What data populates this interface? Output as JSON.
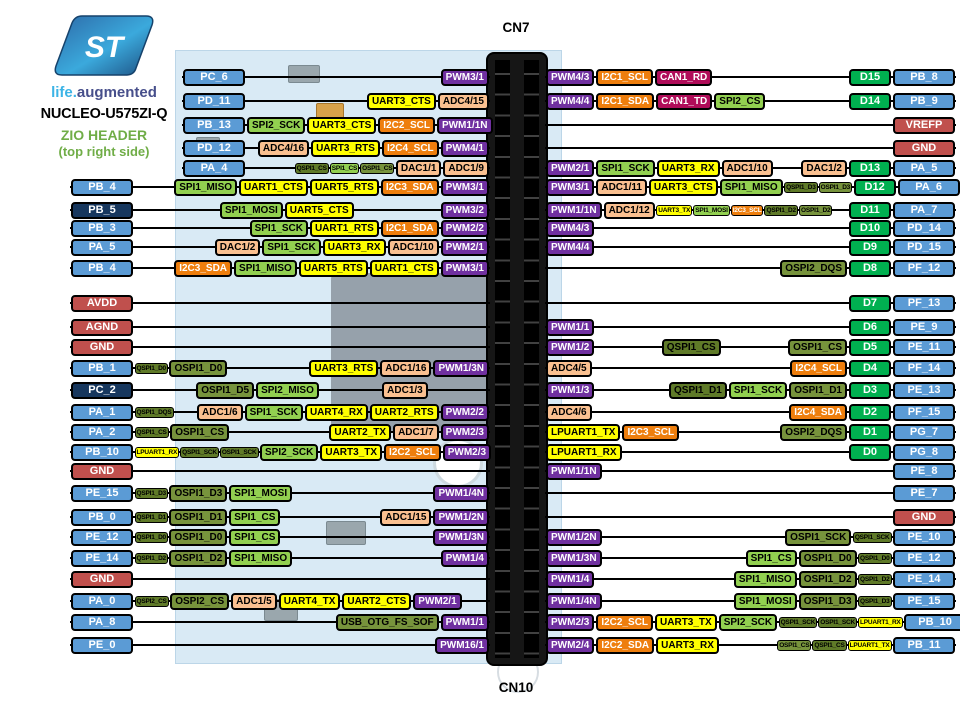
{
  "brand": {
    "logo_text": "ST",
    "tagline_life": "life.",
    "tagline_aug": "augmented",
    "board": "NUCLEO-U575ZI-Q",
    "header": "ZIO HEADER",
    "side": "(top right side)"
  },
  "labels": {
    "top": "CN7",
    "bottom": "CN10"
  },
  "palette": {
    "pin": {
      "bg": "#5B9BD5",
      "fg": "#FFFFFF"
    },
    "pinDark": {
      "bg": "#17375E",
      "fg": "#FFFFFF"
    },
    "power": {
      "bg": "#C0504D",
      "fg": "#FFFFFF"
    },
    "d": {
      "bg": "#00B050",
      "fg": "#FFFFFF"
    },
    "pwm": {
      "bg": "#7030A0",
      "fg": "#FFFFFF"
    },
    "i2c": {
      "bg": "#EE7E0D",
      "fg": "#FFFFFF"
    },
    "can": {
      "bg": "#B00C59",
      "fg": "#FFFFFF"
    },
    "adc": {
      "bg": "#FAC090",
      "fg": "#000000"
    },
    "uart": {
      "bg": "#FFFF00",
      "fg": "#000000"
    },
    "spi": {
      "bg": "#92D050",
      "fg": "#000000"
    },
    "ospi": {
      "bg": "#77933C",
      "fg": "#000000"
    },
    "qspi": {
      "bg": "#5F7A28",
      "fg": "#000000"
    },
    "usb": {
      "bg": "#77933C",
      "fg": "#000000"
    }
  },
  "left_rows": [
    {
      "pin": "PC_6",
      "pt": "pin",
      "items": [
        {
          "g": 1
        },
        {
          "l": "PWM3/1",
          "t": "pwm"
        }
      ]
    },
    {
      "pin": "PD_11",
      "pt": "pin",
      "items": [
        {
          "g": 1
        },
        {
          "l": "UART3_CTS",
          "t": "uart"
        },
        {
          "l": "ADC4/15",
          "t": "adc"
        }
      ]
    },
    {
      "pin": "PB_13",
      "pt": "pin",
      "items": [
        {
          "g": 1
        },
        {
          "l": "SPI2_SCK",
          "t": "spi"
        },
        {
          "l": "UART3_CTS",
          "t": "uart"
        },
        {
          "l": "I2C2_SCL",
          "t": "i2c"
        },
        {
          "l": "PWM1/1N",
          "t": "pwm"
        }
      ]
    },
    {
      "pin": "PD_12",
      "pt": "pin",
      "items": [
        {
          "g": 1
        },
        {
          "l": "ADC4/16",
          "t": "adc"
        },
        {
          "l": "UART3_RTS",
          "t": "uart"
        },
        {
          "l": "I2C4_SCL",
          "t": "i2c"
        },
        {
          "l": "PWM4/1",
          "t": "pwm"
        }
      ]
    },
    {
      "pin": "PA_4",
      "pt": "pin",
      "items": [
        {
          "g": 1
        },
        {
          "l": "QSPI1_CS",
          "t": "qspi",
          "s": 1
        },
        {
          "l": "SPI1_CS",
          "t": "spi",
          "s": 1
        },
        {
          "l": "OSPI1_CS",
          "t": "ospi",
          "s": 1
        },
        {
          "l": "DAC1/1",
          "t": "adc"
        },
        {
          "l": "ADC1/9",
          "t": "adc"
        }
      ]
    },
    {
      "pin": "PB_4",
      "pt": "pin",
      "items": [
        {
          "g": 1
        },
        {
          "l": "SPI1_MISO",
          "t": "spi"
        },
        {
          "l": "UART1_CTS",
          "t": "uart"
        },
        {
          "l": "UART5_RTS",
          "t": "uart"
        },
        {
          "l": "I2C3_SDA",
          "t": "i2c"
        },
        {
          "l": "PWM3/1",
          "t": "pwm"
        }
      ]
    },
    {
      "pin": "PB_5",
      "pt": "pinDark",
      "items": [
        {
          "g": 1
        },
        {
          "l": "SPI1_MOSI",
          "t": "spi"
        },
        {
          "l": "UART5_CTS",
          "t": "uart"
        },
        {
          "g": 1
        },
        {
          "l": "PWM3/2",
          "t": "pwm"
        }
      ]
    },
    {
      "pin": "PB_3",
      "pt": "pin",
      "items": [
        {
          "g": 1
        },
        {
          "l": "SPI1_SCK",
          "t": "spi"
        },
        {
          "l": "UART1_RTS",
          "t": "uart"
        },
        {
          "l": "I2C1_SDA",
          "t": "i2c"
        },
        {
          "l": "PWM2/2",
          "t": "pwm"
        }
      ]
    },
    {
      "pin": "PA_5",
      "pt": "pin",
      "items": [
        {
          "g": 1
        },
        {
          "l": "DAC1/2",
          "t": "adc"
        },
        {
          "l": "SPI1_SCK",
          "t": "spi"
        },
        {
          "l": "UART3_RX",
          "t": "uart"
        },
        {
          "l": "ADC1/10",
          "t": "adc"
        },
        {
          "l": "PWM2/1",
          "t": "pwm"
        }
      ]
    },
    {
      "pin": "PB_4",
      "pt": "pin",
      "items": [
        {
          "g": 1
        },
        {
          "l": "I2C3_SDA",
          "t": "i2c"
        },
        {
          "l": "SPI1_MISO",
          "t": "spi"
        },
        {
          "l": "UART5_RTS",
          "t": "uart"
        },
        {
          "l": "UART1_CTS",
          "t": "uart"
        },
        {
          "l": "PWM3/1",
          "t": "pwm"
        }
      ]
    },
    {
      "pin": "AVDD",
      "pt": "power",
      "items": [
        {
          "g": 1
        }
      ]
    },
    {
      "pin": "AGND",
      "pt": "power",
      "items": [
        {
          "g": 1
        }
      ]
    },
    {
      "pin": "GND",
      "pt": "power",
      "items": [
        {
          "g": 1
        }
      ]
    },
    {
      "pin": "PB_1",
      "pt": "pin",
      "items": [
        {
          "l": "QSPI1_D0",
          "t": "qspi",
          "s": 1
        },
        {
          "l": "OSPI1_D0",
          "t": "ospi"
        },
        {
          "g": 1
        },
        {
          "l": "UART3_RTS",
          "t": "uart"
        },
        {
          "l": "ADC1/16",
          "t": "adc"
        },
        {
          "l": "PWM1/3N",
          "t": "pwm"
        }
      ]
    },
    {
      "pin": "PC_2",
      "pt": "pinDark",
      "items": [
        {
          "g": 1
        },
        {
          "l": "OSPI1_D5",
          "t": "ospi"
        },
        {
          "l": "SPI2_MISO",
          "t": "spi"
        },
        {
          "g": 1
        },
        {
          "l": "ADC1/3",
          "t": "adc"
        },
        {
          "g": 1
        }
      ]
    },
    {
      "pin": "PA_1",
      "pt": "pin",
      "items": [
        {
          "l": "QSPI1_DQS",
          "t": "qspi",
          "s": 1
        },
        {
          "g": 1
        },
        {
          "l": "ADC1/6",
          "t": "adc"
        },
        {
          "l": "SPI1_SCK",
          "t": "spi"
        },
        {
          "l": "UART4_RX",
          "t": "uart"
        },
        {
          "l": "UART2_RTS",
          "t": "uart"
        },
        {
          "l": "PWM2/2",
          "t": "pwm"
        }
      ]
    },
    {
      "pin": "PA_2",
      "pt": "pin",
      "items": [
        {
          "l": "QSPI1_CS",
          "t": "qspi",
          "s": 1
        },
        {
          "l": "OSPI1_CS",
          "t": "ospi"
        },
        {
          "g": 1
        },
        {
          "l": "UART2_TX",
          "t": "uart"
        },
        {
          "l": "ADC1/7",
          "t": "adc"
        },
        {
          "l": "PWM2/3",
          "t": "pwm"
        }
      ]
    },
    {
      "pin": "PB_10",
      "pt": "pin",
      "items": [
        {
          "l": "LPUART1_RX",
          "t": "uart",
          "s": 1
        },
        {
          "l": "QSPI1_SCK",
          "t": "qspi",
          "s": 1
        },
        {
          "l": "OSPI1_SCK",
          "t": "qspi",
          "s": 1
        },
        {
          "l": "SPI2_SCK",
          "t": "spi"
        },
        {
          "l": "UART3_TX",
          "t": "uart"
        },
        {
          "l": "I2C2_SCL",
          "t": "i2c"
        },
        {
          "l": "PWM2/3",
          "t": "pwm"
        }
      ]
    },
    {
      "pin": "GND",
      "pt": "power",
      "items": [
        {
          "g": 1
        }
      ]
    },
    {
      "pin": "PE_15",
      "pt": "pin",
      "items": [
        {
          "l": "QSPI1_D3",
          "t": "qspi",
          "s": 1
        },
        {
          "l": "OSPI1_D3",
          "t": "ospi"
        },
        {
          "l": "SPI1_MOSI",
          "t": "spi"
        },
        {
          "g": 1
        },
        {
          "l": "PWM1/4N",
          "t": "pwm"
        }
      ]
    },
    {
      "pin": "PB_0",
      "pt": "pin",
      "items": [
        {
          "l": "QSPI1_D1",
          "t": "qspi",
          "s": 1
        },
        {
          "l": "OSPI1_D1",
          "t": "ospi"
        },
        {
          "l": "SPI1_CS",
          "t": "spi"
        },
        {
          "g": 1
        },
        {
          "l": "ADC1/15",
          "t": "adc"
        },
        {
          "l": "PWM1/2N",
          "t": "pwm"
        }
      ]
    },
    {
      "pin": "PE_12",
      "pt": "pin",
      "items": [
        {
          "l": "QSPI1_D0",
          "t": "qspi",
          "s": 1
        },
        {
          "l": "OSPI1_D0",
          "t": "ospi"
        },
        {
          "l": "SPI1_CS",
          "t": "spi"
        },
        {
          "g": 1
        },
        {
          "l": "PWM1/3N",
          "t": "pwm"
        }
      ]
    },
    {
      "pin": "PE_14",
      "pt": "pin",
      "items": [
        {
          "l": "QSPI1_D2",
          "t": "qspi",
          "s": 1
        },
        {
          "l": "OSPI1_D2",
          "t": "ospi"
        },
        {
          "l": "SPI1_MISO",
          "t": "spi"
        },
        {
          "g": 1
        },
        {
          "l": "PWM1/4",
          "t": "pwm"
        }
      ]
    },
    {
      "pin": "GND",
      "pt": "power",
      "items": [
        {
          "g": 1
        }
      ]
    },
    {
      "pin": "PA_0",
      "pt": "pin",
      "items": [
        {
          "l": "QSPI2_CS",
          "t": "qspi",
          "s": 1
        },
        {
          "l": "OSPI2_CS",
          "t": "ospi"
        },
        {
          "l": "ADC1/5",
          "t": "adc"
        },
        {
          "l": "UART4_TX",
          "t": "uart"
        },
        {
          "l": "UART2_CTS",
          "t": "uart"
        },
        {
          "l": "PWM2/1",
          "t": "pwm"
        }
      ]
    },
    {
      "pin": "PA_8",
      "pt": "pin",
      "items": [
        {
          "g": 1
        },
        {
          "l": "USB_OTG_FS_SOF",
          "t": "usb"
        },
        {
          "l": "PWM1/1",
          "t": "pwm"
        }
      ]
    },
    {
      "pin": "PE_0",
      "pt": "pin",
      "items": [
        {
          "g": 1
        },
        {
          "l": "PWM16/1",
          "t": "pwm"
        }
      ]
    }
  ],
  "right_rows": [
    {
      "items": [
        {
          "l": "PWM4/3",
          "t": "pwm"
        },
        {
          "l": "I2C1_SCL",
          "t": "i2c"
        },
        {
          "l": "CAN1_RD",
          "t": "can"
        },
        {
          "g": 1
        }
      ],
      "d": "D15",
      "pin": "PB_8",
      "pt": "pin"
    },
    {
      "items": [
        {
          "l": "PWM4/4",
          "t": "pwm"
        },
        {
          "l": "I2C1_SDA",
          "t": "i2c"
        },
        {
          "l": "CAN1_TD",
          "t": "can"
        },
        {
          "l": "SPI2_CS",
          "t": "spi"
        },
        {
          "g": 1
        }
      ],
      "d": "D14",
      "pin": "PB_9",
      "pt": "pin"
    },
    {
      "items": [
        {
          "g": 1
        }
      ],
      "pin": "VREFP",
      "pt": "power"
    },
    {
      "items": [
        {
          "g": 1
        }
      ],
      "pin": "GND",
      "pt": "power"
    },
    {
      "items": [
        {
          "l": "PWM2/1",
          "t": "pwm"
        },
        {
          "l": "SPI1_SCK",
          "t": "spi"
        },
        {
          "l": "UART3_RX",
          "t": "uart"
        },
        {
          "l": "ADC1/10",
          "t": "adc"
        },
        {
          "g": 1
        },
        {
          "l": "DAC1/2",
          "t": "adc"
        }
      ],
      "d": "D13",
      "pin": "PA_5",
      "pt": "pin"
    },
    {
      "items": [
        {
          "l": "PWM3/1",
          "t": "pwm"
        },
        {
          "l": "ADC1/11",
          "t": "adc"
        },
        {
          "l": "UART3_CTS",
          "t": "uart"
        },
        {
          "l": "SPI1_MISO",
          "t": "spi"
        },
        {
          "g": 1
        },
        {
          "l": "QSPI1_D3",
          "t": "qspi",
          "s": 1
        },
        {
          "l": "OSPI1_D3",
          "t": "ospi",
          "s": 1
        }
      ],
      "d": "D12",
      "pin": "PA_6",
      "pt": "pin"
    },
    {
      "items": [
        {
          "l": "PWM1/1N",
          "t": "pwm"
        },
        {
          "l": "ADC1/12",
          "t": "adc"
        },
        {
          "l": "UART3_TX",
          "t": "uart",
          "s": 1
        },
        {
          "l": "SPI1_MOSI",
          "t": "spi",
          "s": 1
        },
        {
          "l": "I2C3_SCL",
          "t": "i2c",
          "s": 1
        },
        {
          "l": "QSPI1_D2",
          "t": "qspi",
          "s": 1
        },
        {
          "l": "OSPI1_D2",
          "t": "ospi",
          "s": 1
        },
        {
          "g": 1
        }
      ],
      "d": "D11",
      "pin": "PA_7",
      "pt": "pin"
    },
    {
      "items": [
        {
          "l": "PWM4/3",
          "t": "pwm"
        },
        {
          "g": 1
        }
      ],
      "d": "D10",
      "pin": "PD_14",
      "pt": "pin"
    },
    {
      "items": [
        {
          "l": "PWM4/4",
          "t": "pwm"
        },
        {
          "g": 1
        }
      ],
      "d": "D9",
      "pin": "PD_15",
      "pt": "pin"
    },
    {
      "items": [
        {
          "g": 1
        },
        {
          "l": "OSPI2_DQS",
          "t": "ospi"
        }
      ],
      "d": "D8",
      "pin": "PF_12",
      "pt": "pin"
    },
    {
      "items": [
        {
          "g": 1
        }
      ],
      "d": "D7",
      "pin": "PF_13",
      "pt": "pin"
    },
    {
      "items": [
        {
          "l": "PWM1/1",
          "t": "pwm"
        },
        {
          "g": 1
        }
      ],
      "d": "D6",
      "pin": "PE_9",
      "pt": "pin"
    },
    {
      "items": [
        {
          "l": "PWM1/2",
          "t": "pwm"
        },
        {
          "g": 1
        },
        {
          "l": "QSPI1_CS",
          "t": "qspi"
        },
        {
          "g": 1
        },
        {
          "l": "OSPI1_CS",
          "t": "ospi"
        }
      ],
      "d": "D5",
      "pin": "PE_11",
      "pt": "pin"
    },
    {
      "items": [
        {
          "l": "ADC4/5",
          "t": "adc"
        },
        {
          "g": 1
        },
        {
          "l": "I2C4_SCL",
          "t": "i2c"
        }
      ],
      "d": "D4",
      "pin": "PF_14",
      "pt": "pin"
    },
    {
      "items": [
        {
          "l": "PWM1/3",
          "t": "pwm"
        },
        {
          "g": 1
        },
        {
          "l": "QSPI1_D1",
          "t": "qspi"
        },
        {
          "l": "SPI1_SCK",
          "t": "spi"
        },
        {
          "l": "OSPI1_D1",
          "t": "ospi"
        }
      ],
      "d": "D3",
      "pin": "PE_13",
      "pt": "pin"
    },
    {
      "items": [
        {
          "l": "ADC4/6",
          "t": "adc"
        },
        {
          "g": 1
        },
        {
          "l": "I2C4_SDA",
          "t": "i2c"
        }
      ],
      "d": "D2",
      "pin": "PF_15",
      "pt": "pin"
    },
    {
      "items": [
        {
          "l": "LPUART1_TX",
          "t": "uart"
        },
        {
          "l": "I2C3_SCL",
          "t": "i2c"
        },
        {
          "g": 1
        },
        {
          "l": "OSPI2_DQS",
          "t": "ospi"
        }
      ],
      "d": "D1",
      "pin": "PG_7",
      "pt": "pin"
    },
    {
      "items": [
        {
          "l": "LPUART1_RX",
          "t": "uart"
        },
        {
          "g": 1
        }
      ],
      "d": "D0",
      "pin": "PG_8",
      "pt": "pin"
    },
    {
      "items": [
        {
          "l": "PWM1/1N",
          "t": "pwm"
        },
        {
          "g": 1
        }
      ],
      "pin": "PE_8",
      "pt": "pin"
    },
    {
      "items": [
        {
          "g": 1
        }
      ],
      "pin": "PE_7",
      "pt": "pin"
    },
    {
      "items": [
        {
          "g": 1
        }
      ],
      "pin": "GND",
      "pt": "power"
    },
    {
      "items": [
        {
          "l": "PWM1/2N",
          "t": "pwm"
        },
        {
          "g": 1
        },
        {
          "l": "OSPI1_SCK",
          "t": "ospi"
        },
        {
          "l": "QSPI1_SCK",
          "t": "qspi",
          "s": 1
        }
      ],
      "pin": "PE_10",
      "pt": "pin"
    },
    {
      "items": [
        {
          "l": "PWM1/3N",
          "t": "pwm"
        },
        {
          "g": 1
        },
        {
          "l": "SPI1_CS",
          "t": "spi"
        },
        {
          "l": "OSPI1_D0",
          "t": "ospi"
        },
        {
          "l": "QSPI1_D0",
          "t": "qspi",
          "s": 1
        }
      ],
      "pin": "PE_12",
      "pt": "pin"
    },
    {
      "items": [
        {
          "l": "PWM1/4",
          "t": "pwm"
        },
        {
          "g": 1
        },
        {
          "l": "SPI1_MISO",
          "t": "spi"
        },
        {
          "l": "OSPI1_D2",
          "t": "ospi"
        },
        {
          "l": "QSPI1_D2",
          "t": "qspi",
          "s": 1
        }
      ],
      "pin": "PE_14",
      "pt": "pin"
    },
    {
      "items": [
        {
          "l": "PWM1/4N",
          "t": "pwm"
        },
        {
          "g": 1
        },
        {
          "l": "SPI1_MOSI",
          "t": "spi"
        },
        {
          "l": "OSPI1_D3",
          "t": "ospi"
        },
        {
          "l": "QSPI1_D3",
          "t": "qspi",
          "s": 1
        }
      ],
      "pin": "PE_15",
      "pt": "pin"
    },
    {
      "items": [
        {
          "l": "PWM2/3",
          "t": "pwm"
        },
        {
          "l": "I2C2_SCL",
          "t": "i2c"
        },
        {
          "l": "UART3_TX",
          "t": "uart"
        },
        {
          "l": "SPI2_SCK",
          "t": "spi"
        },
        {
          "l": "QSPI1_SCK",
          "t": "qspi",
          "s": 1
        },
        {
          "l": "OSPI1_SCK",
          "t": "qspi",
          "s": 1
        },
        {
          "l": "LPUART1_RX",
          "t": "uart",
          "s": 1
        },
        {
          "g": 1
        }
      ],
      "pin": "PB_10",
      "pt": "pin"
    },
    {
      "items": [
        {
          "l": "PWM2/4",
          "t": "pwm"
        },
        {
          "l": "I2C2_SDA",
          "t": "i2c"
        },
        {
          "l": "UART3_RX",
          "t": "uart"
        },
        {
          "g": 1
        },
        {
          "l": "OSPI1_CS",
          "t": "ospi",
          "s": 1
        },
        {
          "l": "QSPI1_CS",
          "t": "qspi",
          "s": 1
        },
        {
          "l": "LPUART1_TX",
          "t": "uart",
          "s": 1
        }
      ],
      "pin": "PB_11",
      "pt": "pin"
    }
  ]
}
